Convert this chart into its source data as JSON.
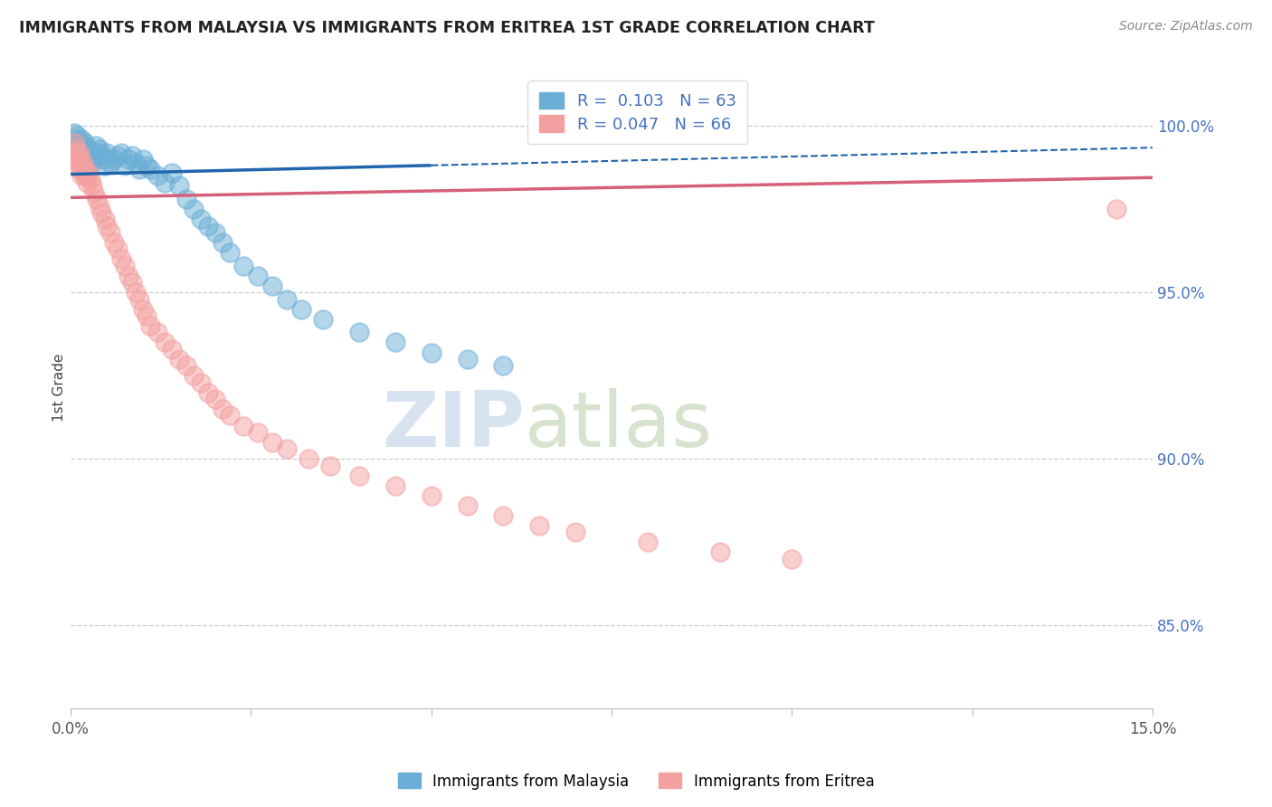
{
  "title": "IMMIGRANTS FROM MALAYSIA VS IMMIGRANTS FROM ERITREA 1ST GRADE CORRELATION CHART",
  "source": "Source: ZipAtlas.com",
  "ylabel_label": "1st Grade",
  "ylabel_right_ticks": [
    "85.0%",
    "90.0%",
    "95.0%",
    "100.0%"
  ],
  "ylabel_right_vals": [
    85.0,
    90.0,
    95.0,
    100.0
  ],
  "x_min": 0.0,
  "x_max": 15.0,
  "y_min": 82.5,
  "y_max": 101.8,
  "legend_blue_r": "R =  0.103",
  "legend_blue_n": "N = 63",
  "legend_pink_r": "R = 0.047",
  "legend_pink_n": "N = 66",
  "watermark_zip": "ZIP",
  "watermark_atlas": "atlas",
  "blue_color": "#6baed6",
  "pink_color": "#f4a0a0",
  "blue_line_color": "#2166ac",
  "pink_line_color": "#d6607a",
  "blue_line_x0": 0.0,
  "blue_line_y0": 98.55,
  "blue_line_x1": 15.0,
  "blue_line_y1": 99.35,
  "pink_line_x0": 0.0,
  "pink_line_y0": 97.85,
  "pink_line_x1": 15.0,
  "pink_line_y1": 98.45,
  "malaysia_x": [
    0.05,
    0.07,
    0.08,
    0.09,
    0.1,
    0.11,
    0.12,
    0.13,
    0.14,
    0.15,
    0.16,
    0.17,
    0.18,
    0.19,
    0.2,
    0.22,
    0.24,
    0.25,
    0.27,
    0.28,
    0.3,
    0.32,
    0.35,
    0.38,
    0.4,
    0.42,
    0.45,
    0.48,
    0.5,
    0.55,
    0.6,
    0.65,
    0.7,
    0.75,
    0.8,
    0.85,
    0.9,
    0.95,
    1.0,
    1.05,
    1.1,
    1.2,
    1.3,
    1.4,
    1.5,
    1.6,
    1.7,
    1.8,
    1.9,
    2.0,
    2.1,
    2.2,
    2.4,
    2.6,
    2.8,
    3.0,
    3.2,
    3.5,
    4.0,
    4.5,
    5.0,
    5.5,
    6.0
  ],
  "malaysia_y": [
    99.8,
    99.5,
    99.6,
    99.7,
    99.3,
    99.4,
    99.2,
    99.5,
    99.1,
    99.6,
    99.0,
    99.3,
    99.4,
    99.2,
    99.5,
    99.1,
    99.0,
    99.3,
    98.9,
    99.2,
    99.1,
    99.0,
    99.4,
    99.2,
    99.3,
    99.1,
    99.0,
    98.8,
    99.2,
    98.9,
    99.0,
    99.1,
    99.2,
    98.8,
    99.0,
    99.1,
    98.9,
    98.7,
    99.0,
    98.8,
    98.7,
    98.5,
    98.3,
    98.6,
    98.2,
    97.8,
    97.5,
    97.2,
    97.0,
    96.8,
    96.5,
    96.2,
    95.8,
    95.5,
    95.2,
    94.8,
    94.5,
    94.2,
    93.8,
    93.5,
    93.2,
    93.0,
    92.8
  ],
  "eritrea_x": [
    0.04,
    0.06,
    0.07,
    0.08,
    0.09,
    0.1,
    0.11,
    0.12,
    0.13,
    0.14,
    0.15,
    0.16,
    0.17,
    0.18,
    0.19,
    0.2,
    0.22,
    0.25,
    0.28,
    0.3,
    0.33,
    0.36,
    0.4,
    0.43,
    0.47,
    0.5,
    0.55,
    0.6,
    0.65,
    0.7,
    0.75,
    0.8,
    0.85,
    0.9,
    0.95,
    1.0,
    1.05,
    1.1,
    1.2,
    1.3,
    1.4,
    1.5,
    1.6,
    1.7,
    1.8,
    1.9,
    2.0,
    2.1,
    2.2,
    2.4,
    2.6,
    2.8,
    3.0,
    3.3,
    3.6,
    4.0,
    4.5,
    5.0,
    5.5,
    6.0,
    6.5,
    7.0,
    8.0,
    9.0,
    10.0,
    14.5
  ],
  "eritrea_y": [
    99.2,
    99.5,
    99.3,
    99.0,
    98.8,
    99.1,
    98.9,
    99.2,
    99.0,
    98.7,
    98.5,
    98.8,
    98.6,
    98.9,
    98.7,
    98.5,
    98.3,
    98.6,
    98.4,
    98.2,
    98.0,
    97.8,
    97.6,
    97.4,
    97.2,
    97.0,
    96.8,
    96.5,
    96.3,
    96.0,
    95.8,
    95.5,
    95.3,
    95.0,
    94.8,
    94.5,
    94.3,
    94.0,
    93.8,
    93.5,
    93.3,
    93.0,
    92.8,
    92.5,
    92.3,
    92.0,
    91.8,
    91.5,
    91.3,
    91.0,
    90.8,
    90.5,
    90.3,
    90.0,
    89.8,
    89.5,
    89.2,
    88.9,
    88.6,
    88.3,
    88.0,
    87.8,
    87.5,
    87.2,
    87.0,
    97.5
  ]
}
